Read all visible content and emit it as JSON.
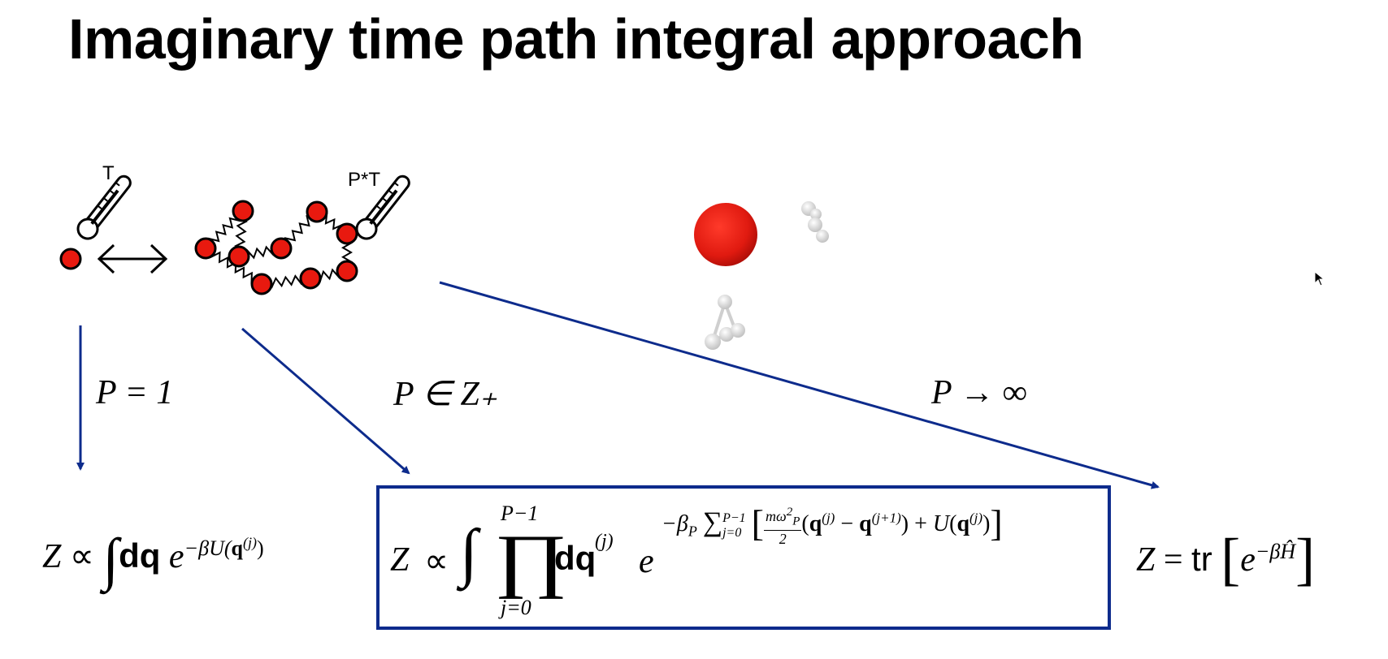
{
  "slide": {
    "title": "Imaginary time path integral approach"
  },
  "thermometers": {
    "left_label": "T",
    "right_label": "P*T"
  },
  "arrows": {
    "left_label": "P = 1",
    "middle_label": "P ∈ Z₊",
    "right_label": "P → ∞"
  },
  "equations": {
    "left": {
      "Z": "Z",
      "prop": "∝",
      "integral": "∫",
      "dq": "dq",
      "e": "e",
      "exponent": "−βU(q",
      "exp_sup": "(j)",
      "exp_close": ")"
    },
    "middle": {
      "Z": "Z",
      "prop": "∝",
      "integral": "∫",
      "prod": "∏",
      "prod_top": "P−1",
      "prod_bottom": "j=0",
      "dq": "dq",
      "dq_sup": "(j)",
      "e": "e",
      "exp_pre": "−β",
      "exp_sub": "P",
      "sum": "∑",
      "sum_top": "P−1",
      "sum_bottom": "j=0",
      "frac_num": "mω",
      "frac_num_sup": "2",
      "frac_num_sub": "P",
      "frac_den": "2",
      "term1": "(q",
      "term1_sup": "(j)",
      "term1_mid": " − q",
      "term1_sup2": "(j+1)",
      "term1_close": ") + U(q",
      "term1_sup3": "(j)",
      "term1_end": ")"
    },
    "right": {
      "Z": "Z",
      "eq": "=",
      "tr": "tr",
      "e": "e",
      "exponent": "−βĤ"
    }
  }
}
